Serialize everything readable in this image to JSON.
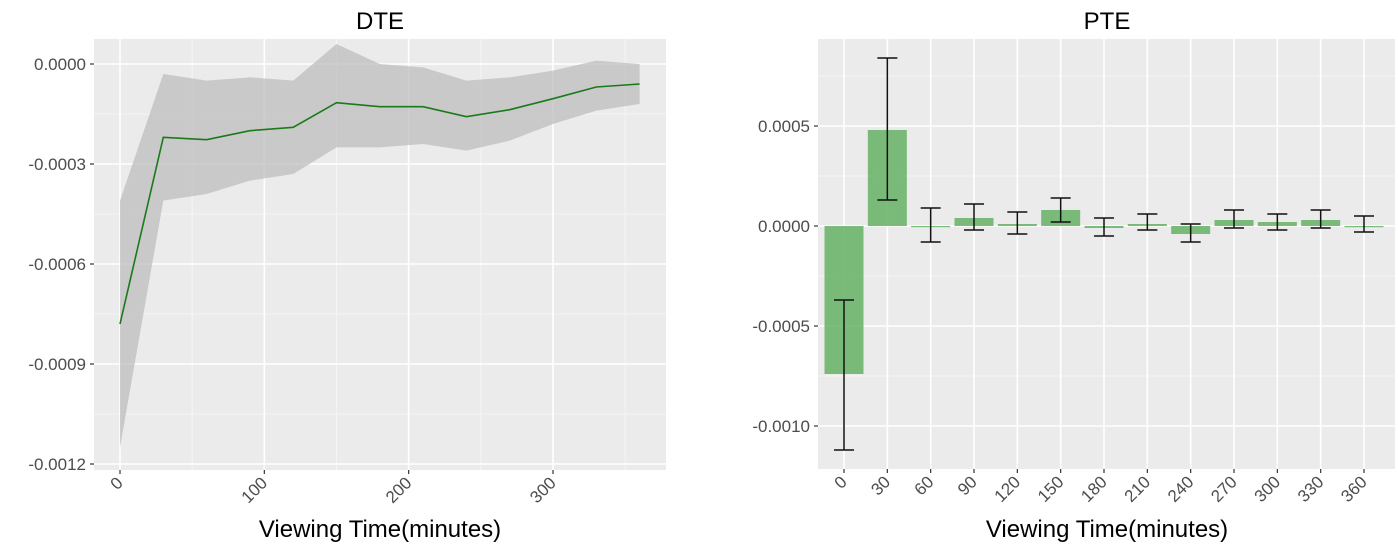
{
  "chart_data": [
    {
      "type": "line",
      "title": "DTE",
      "xlabel": "Viewing Time(minutes)",
      "ylabel": "",
      "x": [
        0,
        30,
        60,
        90,
        120,
        150,
        180,
        210,
        240,
        270,
        300,
        330,
        360
      ],
      "series": [
        {
          "name": "estimate",
          "color": "#1a7a1a",
          "values": [
            -0.00078,
            -0.00022,
            -0.000227,
            -0.0002,
            -0.00019,
            -0.000116,
            -0.000128,
            -0.000128,
            -0.000158,
            -0.000137,
            -0.000104,
            -6.9e-05,
            -6e-05
          ]
        },
        {
          "name": "upper",
          "values": [
            -0.00041,
            -3e-05,
            -5e-05,
            -4e-05,
            -5e-05,
            6e-05,
            0.0,
            -1e-05,
            -5e-05,
            -4e-05,
            -2e-05,
            1e-05,
            0.0
          ]
        },
        {
          "name": "lower",
          "values": [
            -0.00115,
            -0.00041,
            -0.00039,
            -0.00035,
            -0.00033,
            -0.00025,
            -0.00025,
            -0.00024,
            -0.00026,
            -0.00023,
            -0.00018,
            -0.00014,
            -0.00012
          ]
        }
      ],
      "band_color": "#c8c8c8",
      "xticks": [
        0,
        100,
        200,
        300
      ],
      "xtick_labels": [
        "0",
        "100",
        "200",
        "300"
      ],
      "yticks": [
        0.0,
        -0.0003,
        -0.0006,
        -0.0009,
        -0.0012
      ],
      "ytick_labels": [
        "0.0000",
        "-0.0003",
        "-0.0006",
        "-0.0009",
        "-0.0012"
      ],
      "xlim": [
        -18,
        378
      ],
      "ylim": [
        -0.00122,
        7.5e-05
      ],
      "grid": true,
      "legend": "none"
    },
    {
      "type": "bar",
      "title": "PTE",
      "xlabel": "Viewing Time(minutes)",
      "ylabel": "",
      "categories": [
        "0",
        "30",
        "60",
        "90",
        "120",
        "150",
        "180",
        "210",
        "240",
        "270",
        "300",
        "330",
        "360"
      ],
      "values": [
        -0.00074,
        0.00048,
        0.0,
        4e-05,
        1e-05,
        8e-05,
        -1e-05,
        1e-05,
        -4e-05,
        3e-05,
        2e-05,
        3e-05,
        0.0
      ],
      "error_low": [
        -0.00112,
        0.00013,
        -8e-05,
        -2e-05,
        -4e-05,
        2e-05,
        -5e-05,
        -2e-05,
        -8e-05,
        -1e-05,
        -2e-05,
        -1e-05,
        -3e-05
      ],
      "error_high": [
        -0.00037,
        0.00084,
        9e-05,
        0.00011,
        7e-05,
        0.00014,
        4e-05,
        6e-05,
        1e-05,
        8e-05,
        6e-05,
        8e-05,
        5e-05
      ],
      "bar_color": "#6db56d",
      "yticks": [
        0.0005,
        0.0,
        -0.0005,
        -0.001
      ],
      "ytick_labels": [
        "0.0005",
        "0.0000",
        "-0.0005",
        "-0.0010"
      ],
      "ylim": [
        -0.00121,
        0.00094
      ],
      "grid": true,
      "legend": "none"
    }
  ],
  "panels": {
    "left_title": "DTE",
    "right_title": "PTE",
    "left_xlabel": "Viewing Time(minutes)",
    "right_xlabel": "Viewing Time(minutes)"
  }
}
